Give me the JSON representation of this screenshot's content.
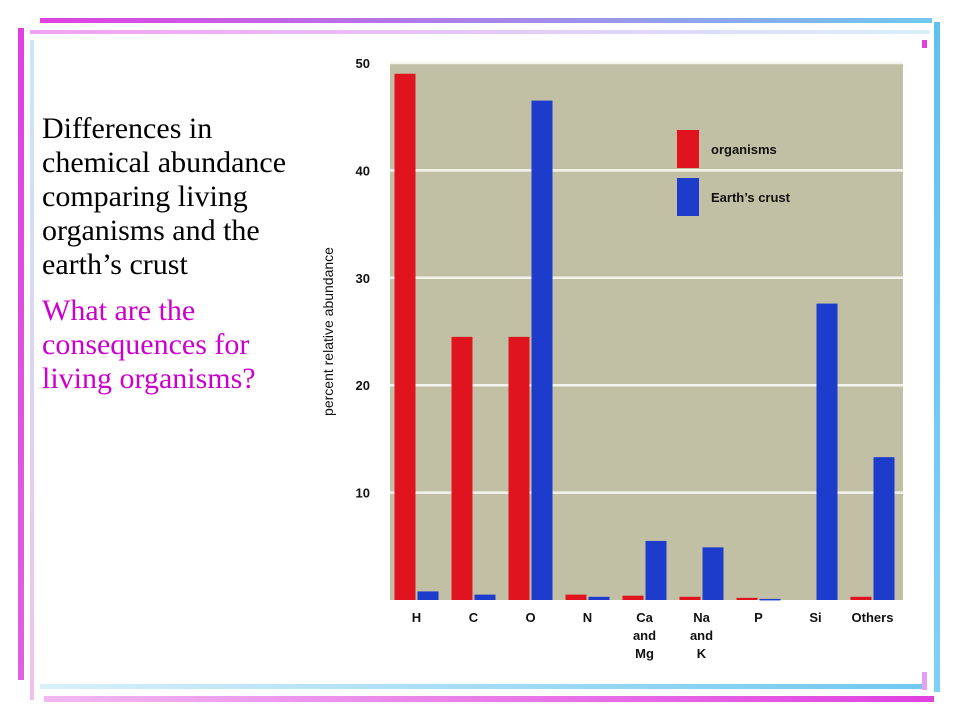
{
  "slide": {
    "main_text": "Differences in chemical abundance comparing living organisms and the earth’s crust",
    "question_text": "What are the consequences for living organisms?"
  },
  "colors": {
    "organisms": "#e0141e",
    "crust": "#1e3ccc",
    "plot_background": "#c2c0a4",
    "question_text": "#cc00cc",
    "frame_magenta": "#e040e0",
    "frame_cyan": "#70c8f0"
  },
  "chart_data": {
    "type": "bar",
    "ylabel": "percent relative abundance",
    "ylim": [
      0,
      50
    ],
    "yticks": [
      10,
      20,
      30,
      40,
      50
    ],
    "grid": true,
    "legend_position": "top-right",
    "categories": [
      [
        "H"
      ],
      [
        "C"
      ],
      [
        "O"
      ],
      [
        "N"
      ],
      [
        "Ca",
        "and",
        "Mg"
      ],
      [
        "Na",
        "and",
        "K"
      ],
      [
        "P"
      ],
      [
        "Si"
      ],
      [
        "Others"
      ]
    ],
    "series": [
      {
        "name": "organisms",
        "values": [
          49,
          24.5,
          24.5,
          0.5,
          0.4,
          0.3,
          0.2,
          0,
          0.3
        ]
      },
      {
        "name": "Earth’s crust",
        "values": [
          0.8,
          0.5,
          46.5,
          0.3,
          5.5,
          4.9,
          0.1,
          27.6,
          13.3
        ]
      }
    ]
  }
}
